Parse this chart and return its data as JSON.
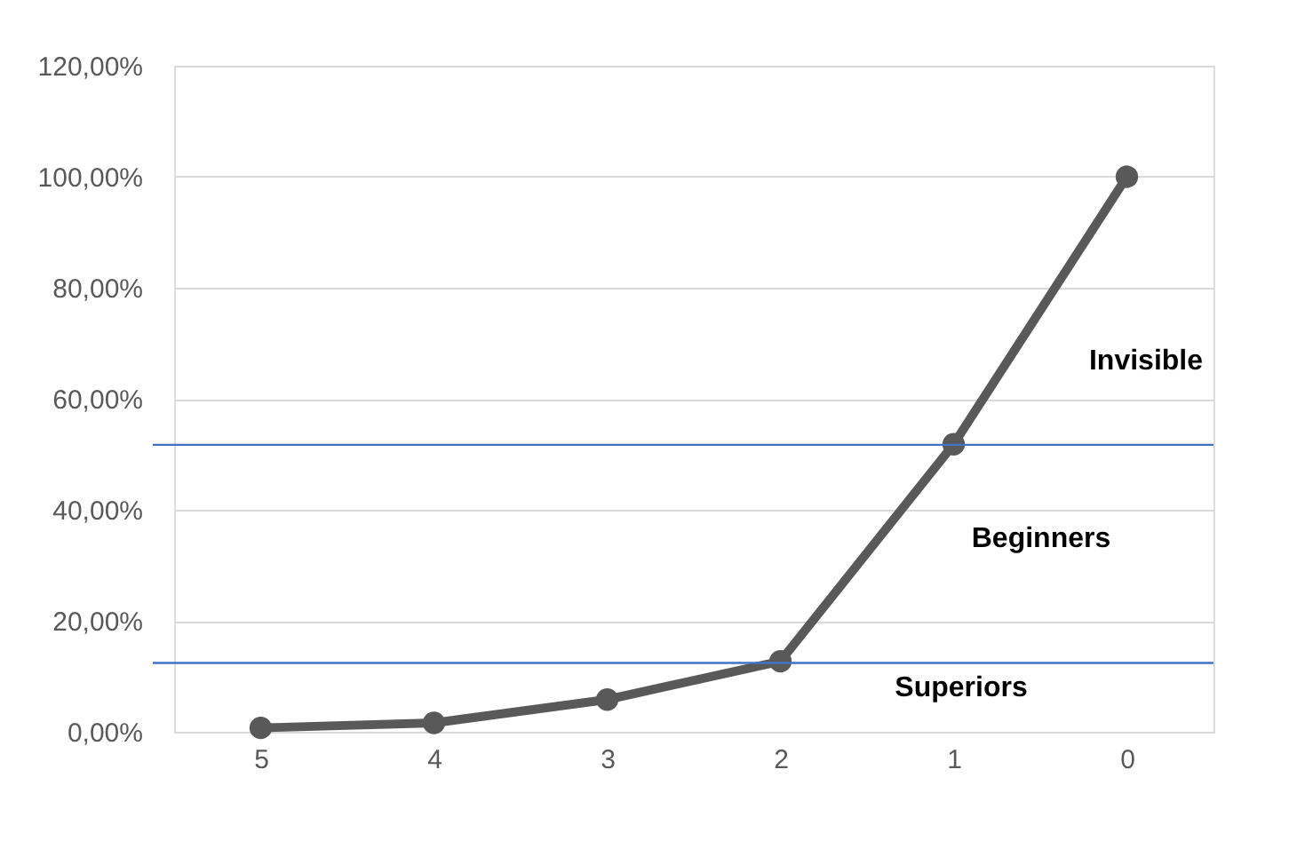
{
  "chart_data": {
    "type": "line",
    "categories": [
      "5",
      "4",
      "3",
      "2",
      "1",
      "0"
    ],
    "series": [
      {
        "color": "#595959",
        "values": [
          0.7,
          1.6,
          5.8,
          12.7,
          51.8,
          100
        ]
      }
    ],
    "ylim": [
      0,
      120
    ],
    "yticks": [
      {
        "value": 0,
        "label": "0,00%"
      },
      {
        "value": 20,
        "label": "20,00%"
      },
      {
        "value": 40,
        "label": "40,00%"
      },
      {
        "value": 60,
        "label": "60,00%"
      },
      {
        "value": 80,
        "label": "80,00%"
      },
      {
        "value": 100,
        "label": "100,00%"
      },
      {
        "value": 120,
        "label": "120,00%"
      }
    ],
    "ref_lines": [
      {
        "axis": "y",
        "value": 51.7,
        "color": "#4472c4"
      },
      {
        "axis": "y",
        "value": 12.4,
        "color": "#4472c4"
      }
    ],
    "annotations": [
      "Invisible",
      "Beginners",
      "Superiors"
    ],
    "grid": "y",
    "marker": "circle",
    "line_style": "solid"
  }
}
